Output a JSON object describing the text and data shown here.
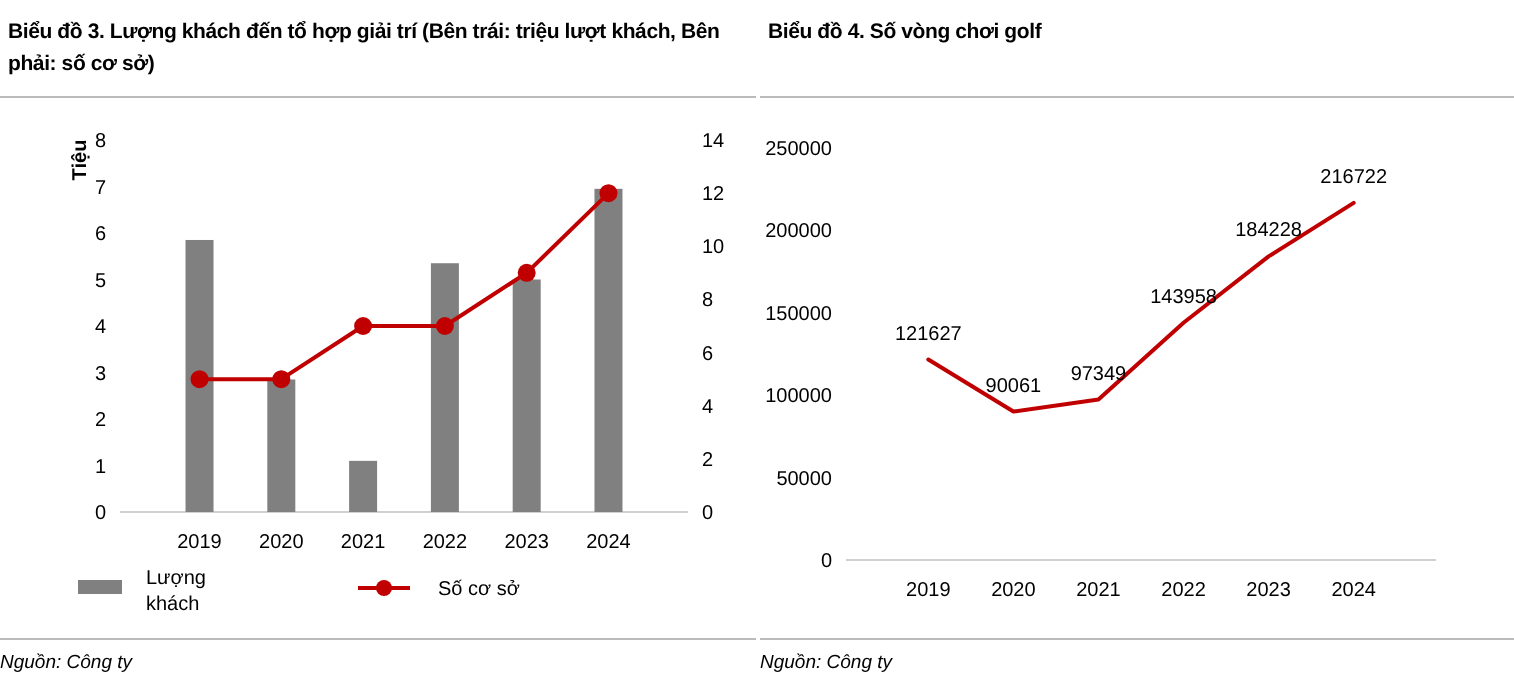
{
  "chart_data": [
    {
      "type": "bar",
      "title": "Biểu đồ 3. Lượng khách đến tổ hợp giải trí (Bên trái: triệu lượt khách, Bên phải: số cơ sở)",
      "ylabel": "Tiệu",
      "categories": [
        "2019",
        "2020",
        "2021",
        "2022",
        "2023",
        "2024"
      ],
      "series": [
        {
          "name": "Lượng khách",
          "color": "#808080",
          "values": [
            5.85,
            2.85,
            1.1,
            5.35,
            5.0,
            6.95
          ]
        },
        {
          "name": "Số cơ sở",
          "type": "line",
          "axis": "y2",
          "color": "#c00000",
          "values": [
            5,
            5,
            7,
            7,
            9,
            12
          ]
        }
      ],
      "ylim": [
        0,
        8
      ],
      "yticks": [
        0,
        1,
        2,
        3,
        4,
        5,
        6,
        7,
        8
      ],
      "y2lim": [
        0,
        14
      ],
      "y2ticks": [
        0,
        2,
        4,
        6,
        8,
        10,
        12,
        14
      ],
      "legend": "bottom",
      "marker": "circle",
      "annotations": [
        "Nguồn: Công ty"
      ]
    },
    {
      "type": "line",
      "title": "Biểu đồ 4. Số vòng chơi golf",
      "categories": [
        "2019",
        "2020",
        "2021",
        "2022",
        "2023",
        "2024"
      ],
      "series": [
        {
          "color": "#c00000",
          "values": [
            121627,
            90061,
            97349,
            143958,
            184228,
            216722
          ]
        }
      ],
      "ylim": [
        0,
        250000
      ],
      "yticks": [
        0,
        50000,
        100000,
        150000,
        200000,
        250000
      ],
      "data_labels": true,
      "annotations": [
        "Nguồn: Công ty"
      ]
    }
  ]
}
